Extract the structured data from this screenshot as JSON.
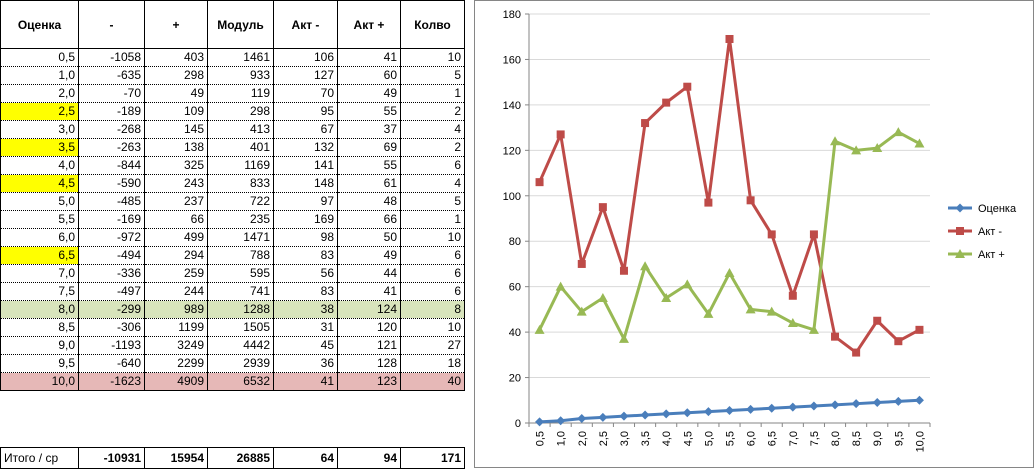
{
  "table": {
    "headers": [
      "Оценка",
      "-",
      "+",
      "Модуль",
      "Акт -",
      "Акт +",
      "Колво"
    ],
    "rows": [
      {
        "cells": [
          "0,5",
          "-1058",
          "403",
          "1461",
          "106",
          "41",
          "10"
        ],
        "highlight": ""
      },
      {
        "cells": [
          "1,0",
          "-635",
          "298",
          "933",
          "127",
          "60",
          "5"
        ],
        "highlight": ""
      },
      {
        "cells": [
          "2,0",
          "-70",
          "49",
          "119",
          "70",
          "49",
          "1"
        ],
        "highlight": ""
      },
      {
        "cells": [
          "2,5",
          "-189",
          "109",
          "298",
          "95",
          "55",
          "2"
        ],
        "highlight": "yellow-first"
      },
      {
        "cells": [
          "3,0",
          "-268",
          "145",
          "413",
          "67",
          "37",
          "4"
        ],
        "highlight": ""
      },
      {
        "cells": [
          "3,5",
          "-263",
          "138",
          "401",
          "132",
          "69",
          "2"
        ],
        "highlight": "yellow-first"
      },
      {
        "cells": [
          "4,0",
          "-844",
          "325",
          "1169",
          "141",
          "55",
          "6"
        ],
        "highlight": ""
      },
      {
        "cells": [
          "4,5",
          "-590",
          "243",
          "833",
          "148",
          "61",
          "4"
        ],
        "highlight": "yellow-first"
      },
      {
        "cells": [
          "5,0",
          "-485",
          "237",
          "722",
          "97",
          "48",
          "5"
        ],
        "highlight": ""
      },
      {
        "cells": [
          "5,5",
          "-169",
          "66",
          "235",
          "169",
          "66",
          "1"
        ],
        "highlight": ""
      },
      {
        "cells": [
          "6,0",
          "-972",
          "499",
          "1471",
          "98",
          "50",
          "10"
        ],
        "highlight": ""
      },
      {
        "cells": [
          "6,5",
          "-494",
          "294",
          "788",
          "83",
          "49",
          "6"
        ],
        "highlight": "yellow-first"
      },
      {
        "cells": [
          "7,0",
          "-336",
          "259",
          "595",
          "56",
          "44",
          "6"
        ],
        "highlight": ""
      },
      {
        "cells": [
          "7,5",
          "-497",
          "244",
          "741",
          "83",
          "41",
          "6"
        ],
        "highlight": ""
      },
      {
        "cells": [
          "8,0",
          "-299",
          "989",
          "1288",
          "38",
          "124",
          "8"
        ],
        "highlight": "green-row"
      },
      {
        "cells": [
          "8,5",
          "-306",
          "1199",
          "1505",
          "31",
          "120",
          "10"
        ],
        "highlight": ""
      },
      {
        "cells": [
          "9,0",
          "-1193",
          "3249",
          "4442",
          "45",
          "121",
          "27"
        ],
        "highlight": ""
      },
      {
        "cells": [
          "9,5",
          "-640",
          "2299",
          "2939",
          "36",
          "128",
          "18"
        ],
        "highlight": ""
      },
      {
        "cells": [
          "10,0",
          "-1623",
          "4909",
          "6532",
          "41",
          "123",
          "40"
        ],
        "highlight": "red-row"
      }
    ],
    "totals": {
      "label": "Итого / ср",
      "values": [
        "-10931",
        "15954",
        "26885",
        "64",
        "94",
        "171"
      ]
    }
  },
  "colors": {
    "yellow": "#ffff00",
    "green_row": "#d8e4bc",
    "red_row": "#e6b8b7",
    "series_blue": "#4a7ebb",
    "series_red": "#be4b48",
    "series_green": "#98b954",
    "grid": "#d9d9d9"
  },
  "chart_data": {
    "type": "line",
    "categories": [
      "0,5",
      "1,0",
      "2,0",
      "2,5",
      "3,0",
      "3,5",
      "4,0",
      "4,5",
      "5,0",
      "5,5",
      "6,0",
      "6,5",
      "7,0",
      "7,5",
      "8,0",
      "8,5",
      "9,0",
      "9,5",
      "10,0"
    ],
    "series": [
      {
        "name": "Оценка",
        "values": [
          0.5,
          1,
          2,
          2.5,
          3,
          3.5,
          4,
          4.5,
          5,
          5.5,
          6,
          6.5,
          7,
          7.5,
          8,
          8.5,
          9,
          9.5,
          10
        ],
        "color": "#4a7ebb",
        "marker": "diamond"
      },
      {
        "name": "Акт -",
        "values": [
          106,
          127,
          70,
          95,
          67,
          132,
          141,
          148,
          97,
          169,
          98,
          83,
          56,
          83,
          38,
          31,
          45,
          36,
          41
        ],
        "color": "#be4b48",
        "marker": "square"
      },
      {
        "name": "Акт +",
        "values": [
          41,
          60,
          49,
          55,
          37,
          69,
          55,
          61,
          48,
          66,
          50,
          49,
          44,
          41,
          124,
          120,
          121,
          128,
          123
        ],
        "color": "#98b954",
        "marker": "triangle"
      }
    ],
    "ylim": [
      0,
      180
    ],
    "yticks": [
      0,
      20,
      40,
      60,
      80,
      100,
      120,
      140,
      160,
      180
    ],
    "grid": true,
    "legend": "right"
  }
}
